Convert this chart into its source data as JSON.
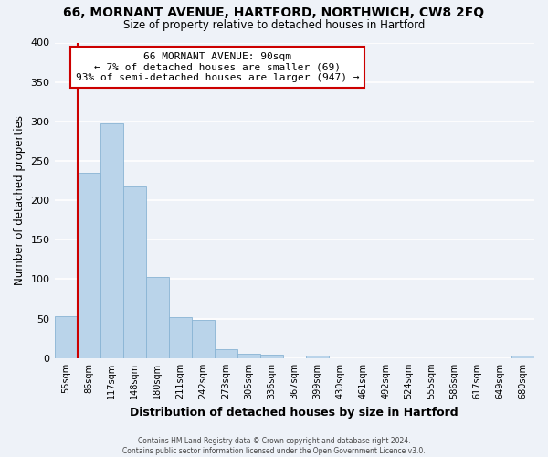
{
  "title": "66, MORNANT AVENUE, HARTFORD, NORTHWICH, CW8 2FQ",
  "subtitle": "Size of property relative to detached houses in Hartford",
  "xlabel": "Distribution of detached houses by size in Hartford",
  "ylabel": "Number of detached properties",
  "bin_labels": [
    "55sqm",
    "86sqm",
    "117sqm",
    "148sqm",
    "180sqm",
    "211sqm",
    "242sqm",
    "273sqm",
    "305sqm",
    "336sqm",
    "367sqm",
    "399sqm",
    "430sqm",
    "461sqm",
    "492sqm",
    "524sqm",
    "555sqm",
    "586sqm",
    "617sqm",
    "649sqm",
    "680sqm"
  ],
  "bar_heights": [
    53,
    235,
    297,
    217,
    103,
    52,
    49,
    11,
    6,
    4,
    0,
    3,
    0,
    0,
    0,
    0,
    0,
    0,
    0,
    0,
    3
  ],
  "bar_color": "#bad4ea",
  "bar_edge_color": "#8ab4d4",
  "red_line_color": "#cc0000",
  "annotation_title": "66 MORNANT AVENUE: 90sqm",
  "annotation_line1": "← 7% of detached houses are smaller (69)",
  "annotation_line2": "93% of semi-detached houses are larger (947) →",
  "annotation_box_color": "#ffffff",
  "annotation_box_edge": "#cc0000",
  "ylim": [
    0,
    400
  ],
  "bg_color": "#eef2f8",
  "grid_color": "#ffffff",
  "footer1": "Contains HM Land Registry data © Crown copyright and database right 2024.",
  "footer2": "Contains public sector information licensed under the Open Government Licence v3.0."
}
